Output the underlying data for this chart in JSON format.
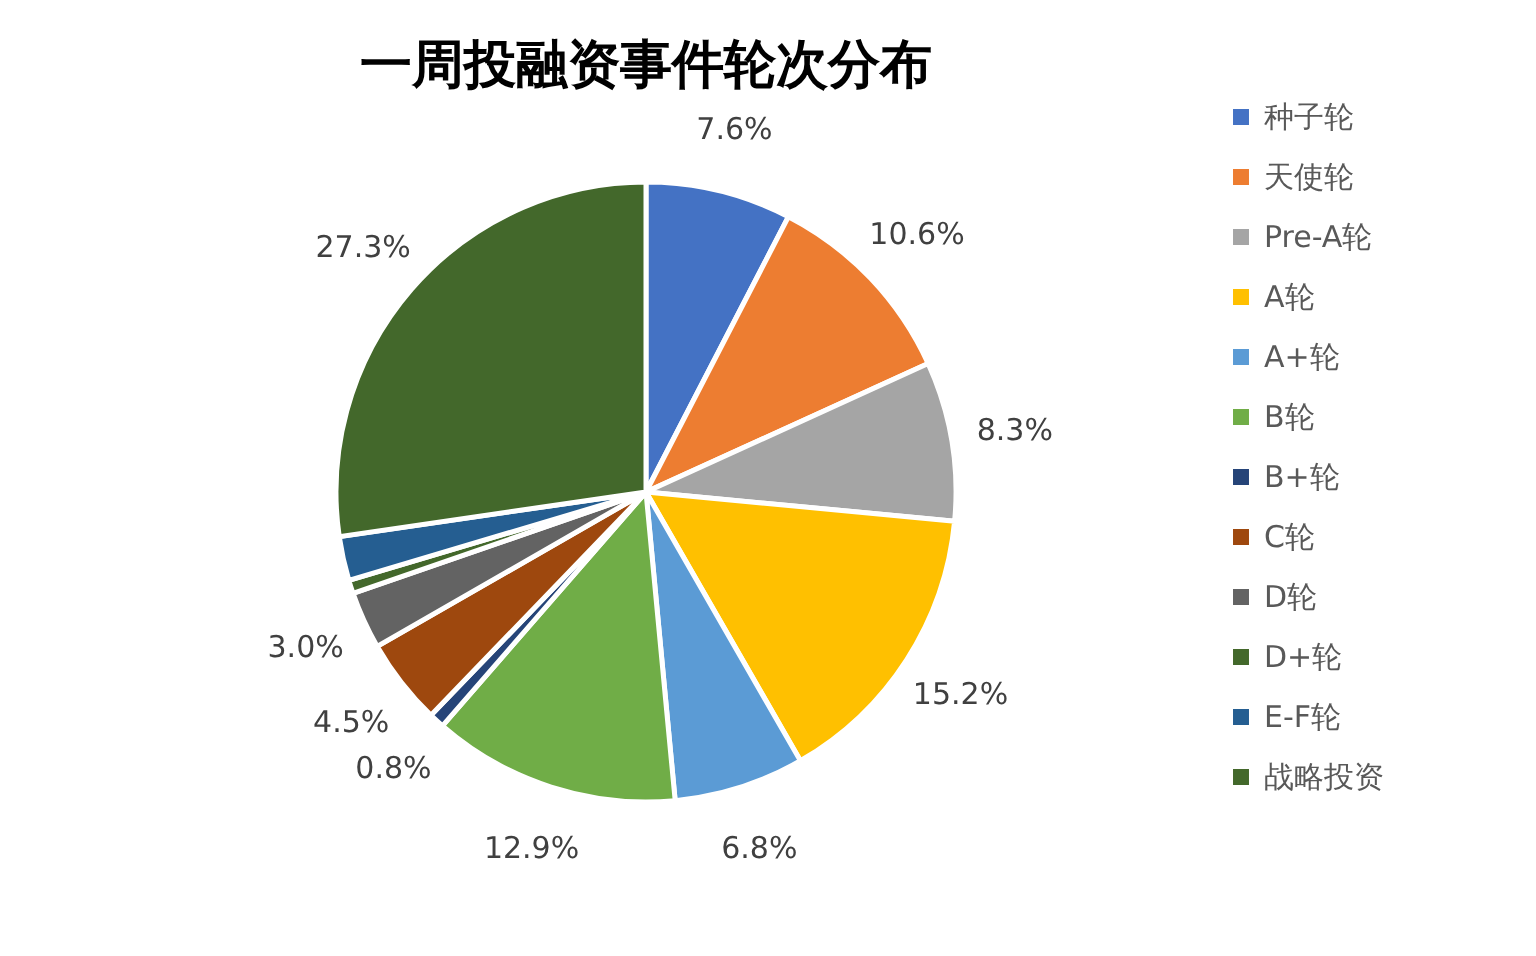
{
  "chart_data": {
    "type": "pie",
    "title": "一周投融资事件轮次分布",
    "categories": [
      "种子轮",
      "天使轮",
      "Pre-A轮",
      "A轮",
      "A+轮",
      "B轮",
      "B+轮",
      "C轮",
      "D轮",
      "D+轮",
      "E-F轮",
      "战略投资"
    ],
    "values": [
      7.6,
      10.6,
      8.3,
      15.2,
      6.8,
      12.9,
      0.8,
      4.5,
      3.0,
      0.7,
      2.3,
      27.3
    ],
    "value_labels": [
      "7.6%",
      "10.6%",
      "8.3%",
      "15.2%",
      "6.8%",
      "12.9%",
      "0.8%",
      "4.5%",
      "3.0%",
      null,
      null,
      "27.3%"
    ],
    "colors": [
      "#4472c4",
      "#ed7d31",
      "#a5a5a5",
      "#ffc000",
      "#5b9bd5",
      "#70ad47",
      "#264478",
      "#9e480e",
      "#636363",
      "#43682b",
      "#255e91",
      "#43682b"
    ],
    "legend": "right"
  }
}
